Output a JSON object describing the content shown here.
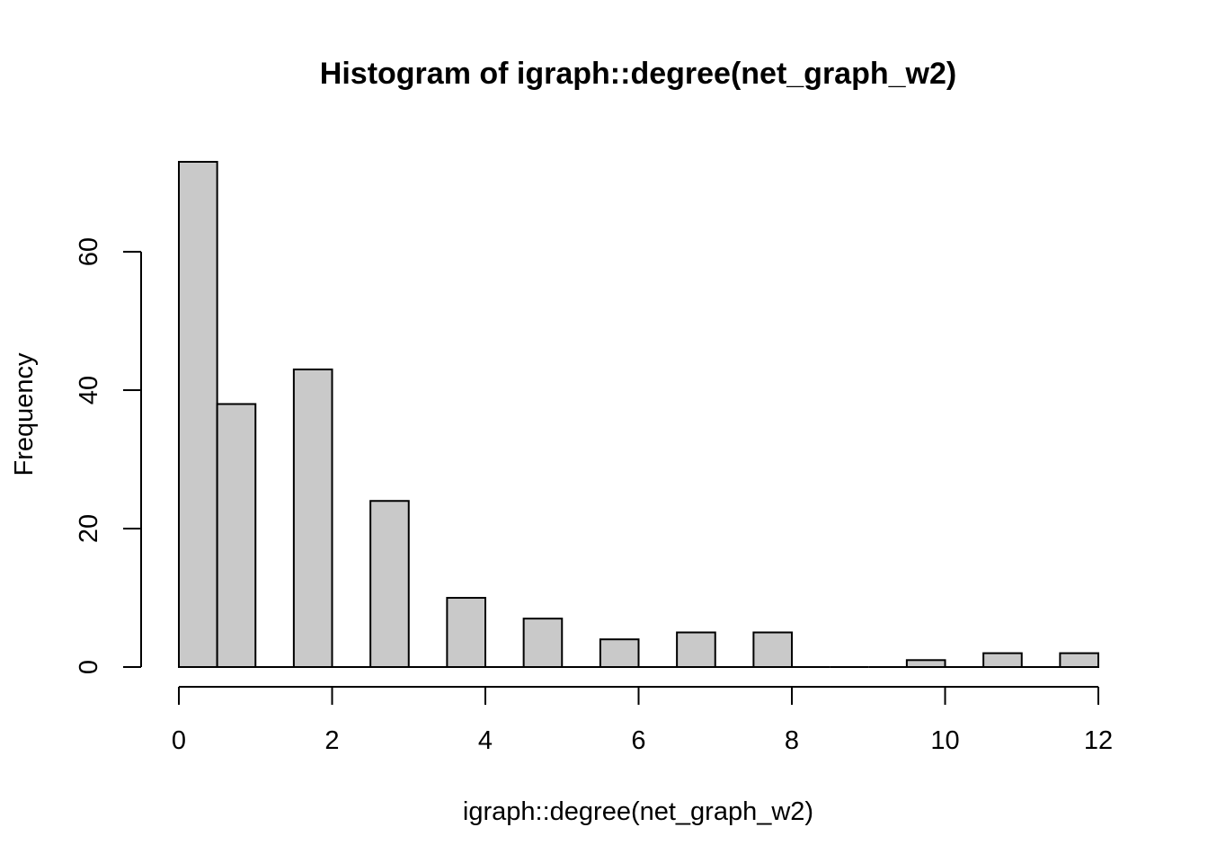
{
  "chart_data": {
    "type": "bar",
    "title": "Histogram of igraph::degree(net_graph_w2)",
    "xlabel": "igraph::degree(net_graph_w2)",
    "ylabel": "Frequency",
    "bins": [
      {
        "start": 0,
        "end": 0.5,
        "count": 73
      },
      {
        "start": 0.5,
        "end": 1,
        "count": 38
      },
      {
        "start": 1,
        "end": 1.5,
        "count": 0
      },
      {
        "start": 1.5,
        "end": 2,
        "count": 43
      },
      {
        "start": 2,
        "end": 2.5,
        "count": 0
      },
      {
        "start": 2.5,
        "end": 3,
        "count": 24
      },
      {
        "start": 3,
        "end": 3.5,
        "count": 0
      },
      {
        "start": 3.5,
        "end": 4,
        "count": 10
      },
      {
        "start": 4,
        "end": 4.5,
        "count": 0
      },
      {
        "start": 4.5,
        "end": 5,
        "count": 7
      },
      {
        "start": 5,
        "end": 5.5,
        "count": 0
      },
      {
        "start": 5.5,
        "end": 6,
        "count": 4
      },
      {
        "start": 6,
        "end": 6.5,
        "count": 0
      },
      {
        "start": 6.5,
        "end": 7,
        "count": 5
      },
      {
        "start": 7,
        "end": 7.5,
        "count": 0
      },
      {
        "start": 7.5,
        "end": 8,
        "count": 5
      },
      {
        "start": 8,
        "end": 8.5,
        "count": 0
      },
      {
        "start": 8.5,
        "end": 9,
        "count": 0
      },
      {
        "start": 9,
        "end": 9.5,
        "count": 0
      },
      {
        "start": 9.5,
        "end": 10,
        "count": 1
      },
      {
        "start": 10,
        "end": 10.5,
        "count": 0
      },
      {
        "start": 10.5,
        "end": 11,
        "count": 2
      },
      {
        "start": 11,
        "end": 11.5,
        "count": 0
      },
      {
        "start": 11.5,
        "end": 12,
        "count": 2
      }
    ],
    "xlim": [
      0,
      12
    ],
    "ylim": [
      0,
      73
    ],
    "xticks": [
      0,
      2,
      4,
      6,
      8,
      10,
      12
    ],
    "yticks": [
      0,
      20,
      40,
      60
    ],
    "bar_color": "#c9c9c9",
    "border_color": "#000000",
    "grid": false,
    "legend": "none"
  }
}
